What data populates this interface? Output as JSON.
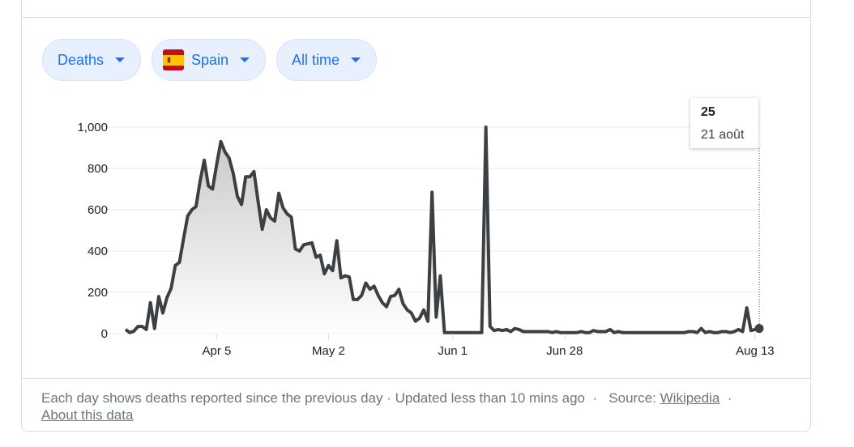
{
  "filters": {
    "metric": "Deaths",
    "country": "Spain",
    "range": "All time"
  },
  "tooltip": {
    "value": "25",
    "date": "21 août"
  },
  "footer": {
    "description": "Each day shows deaths reported since the previous day",
    "updated": "Updated less than 10 mins ago",
    "source_label": "Source:",
    "source_link": "Wikipedia",
    "about": "About this data"
  },
  "colors": {
    "line": "#3c4043",
    "chip_bg": "#e8f0fe",
    "chip_text": "#1a73e8",
    "grid": "#e8eaed"
  },
  "chart_data": {
    "type": "area",
    "ylim": [
      0,
      1000
    ],
    "yticks": [
      0,
      200,
      400,
      600,
      800,
      1000
    ],
    "ytick_labels": [
      "0",
      "200",
      "400",
      "600",
      "800",
      "1,000"
    ],
    "xtick_labels": [
      {
        "day": 22,
        "label": "Apr 5"
      },
      {
        "day": 49,
        "label": "May 2"
      },
      {
        "day": 79,
        "label": "Jun 1"
      },
      {
        "day": 106,
        "label": "Jun 28"
      },
      {
        "day": 152,
        "label": "Aug 13"
      }
    ],
    "grid": true,
    "series": [
      {
        "values": [
          20,
          5,
          12,
          35,
          35,
          20,
          150,
          25,
          180,
          100,
          175,
          220,
          330,
          345,
          460,
          570,
          600,
          615,
          740,
          840,
          715,
          700,
          820,
          930,
          880,
          850,
          775,
          665,
          625,
          760,
          760,
          785,
          640,
          505,
          600,
          560,
          545,
          680,
          610,
          580,
          565,
          410,
          400,
          430,
          435,
          440,
          370,
          380,
          290,
          330,
          305,
          450,
          270,
          280,
          275,
          165,
          165,
          185,
          245,
          215,
          230,
          185,
          150,
          130,
          180,
          185,
          215,
          145,
          115,
          100,
          60,
          75,
          115,
          60,
          685,
          80,
          280,
          5,
          5,
          5,
          5,
          5,
          5,
          5,
          5,
          5,
          5,
          1000,
          35,
          15,
          20,
          15,
          20,
          10,
          25,
          20,
          10,
          10,
          10,
          10,
          10,
          10,
          10,
          5,
          10,
          5,
          5,
          5,
          5,
          5,
          10,
          5,
          5,
          15,
          10,
          10,
          10,
          20,
          5,
          10,
          5,
          5,
          5,
          5,
          5,
          5,
          5,
          5,
          5,
          5,
          5,
          5,
          5,
          5,
          5,
          5,
          10,
          10,
          5,
          25,
          5,
          10,
          5,
          5,
          10,
          10,
          5,
          10,
          20,
          10,
          125,
          15,
          20,
          25
        ]
      }
    ]
  }
}
